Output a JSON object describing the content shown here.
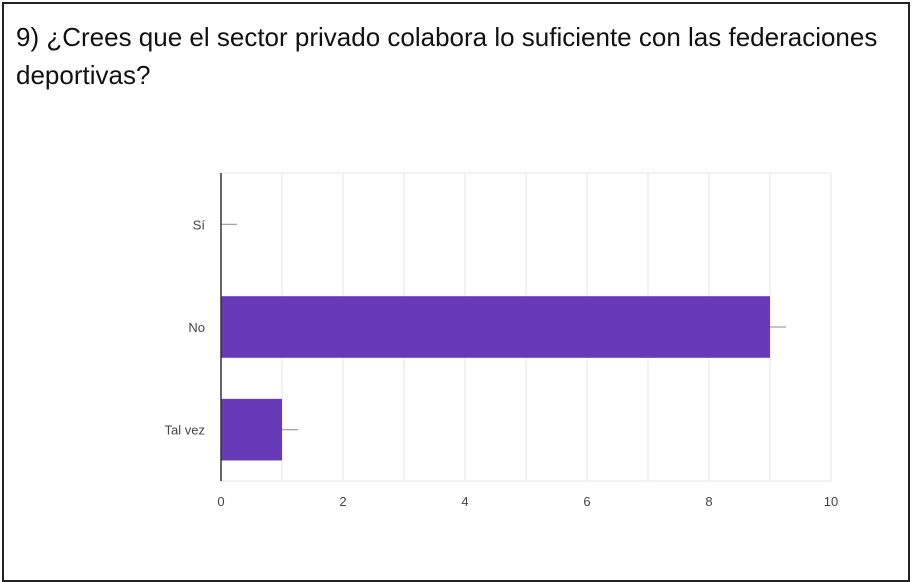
{
  "question": {
    "title": "9) ¿Crees que el sector privado colabora lo suficiente con las federaciones deportivas?"
  },
  "chart_data": {
    "type": "bar",
    "orientation": "horizontal",
    "categories": [
      "Sí",
      "No",
      "Tal vez"
    ],
    "values": [
      0,
      9,
      1
    ],
    "xlim": [
      0,
      10
    ],
    "xticks": [
      0,
      2,
      4,
      6,
      8,
      10
    ],
    "grid": true,
    "bar_color": "#673ab7",
    "title": "",
    "xlabel": "",
    "ylabel": ""
  }
}
